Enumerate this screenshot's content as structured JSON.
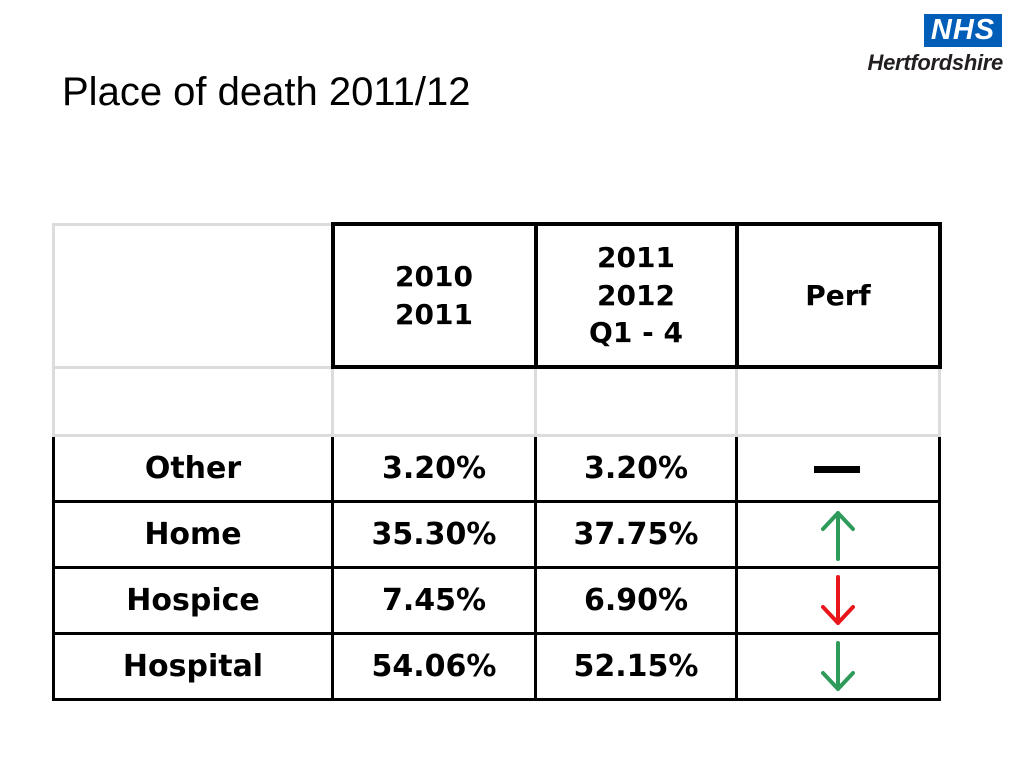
{
  "slide": {
    "title": "Place of death 2011/12"
  },
  "logo": {
    "mark": "NHS",
    "org": "Hertfordshire"
  },
  "table": {
    "headers": {
      "col1": "",
      "col2_line1": "2010",
      "col2_line2": "2011",
      "col3_line1": "2011",
      "col3_line2": "2012",
      "col3_line3": "Q1 - 4",
      "col4": "Perf"
    },
    "rows": [
      {
        "label": "Other",
        "v2010_2011": "3.20%",
        "v2011_2012": "3.20%",
        "perf": "no-change-dash-icon"
      },
      {
        "label": "Home",
        "v2010_2011": "35.30%",
        "v2011_2012": "37.75%",
        "perf": "up-arrow-green-icon"
      },
      {
        "label": "Hospice",
        "v2010_2011": "7.45%",
        "v2011_2012": "6.90%",
        "perf": "down-arrow-red-icon"
      },
      {
        "label": "Hospital",
        "v2010_2011": "54.06%",
        "v2011_2012": "52.15%",
        "perf": "down-arrow-green-icon"
      }
    ]
  },
  "colors": {
    "nhs_blue": "#005eb8",
    "perf_green": "#2e9b5b",
    "perf_red": "#e8161b"
  }
}
